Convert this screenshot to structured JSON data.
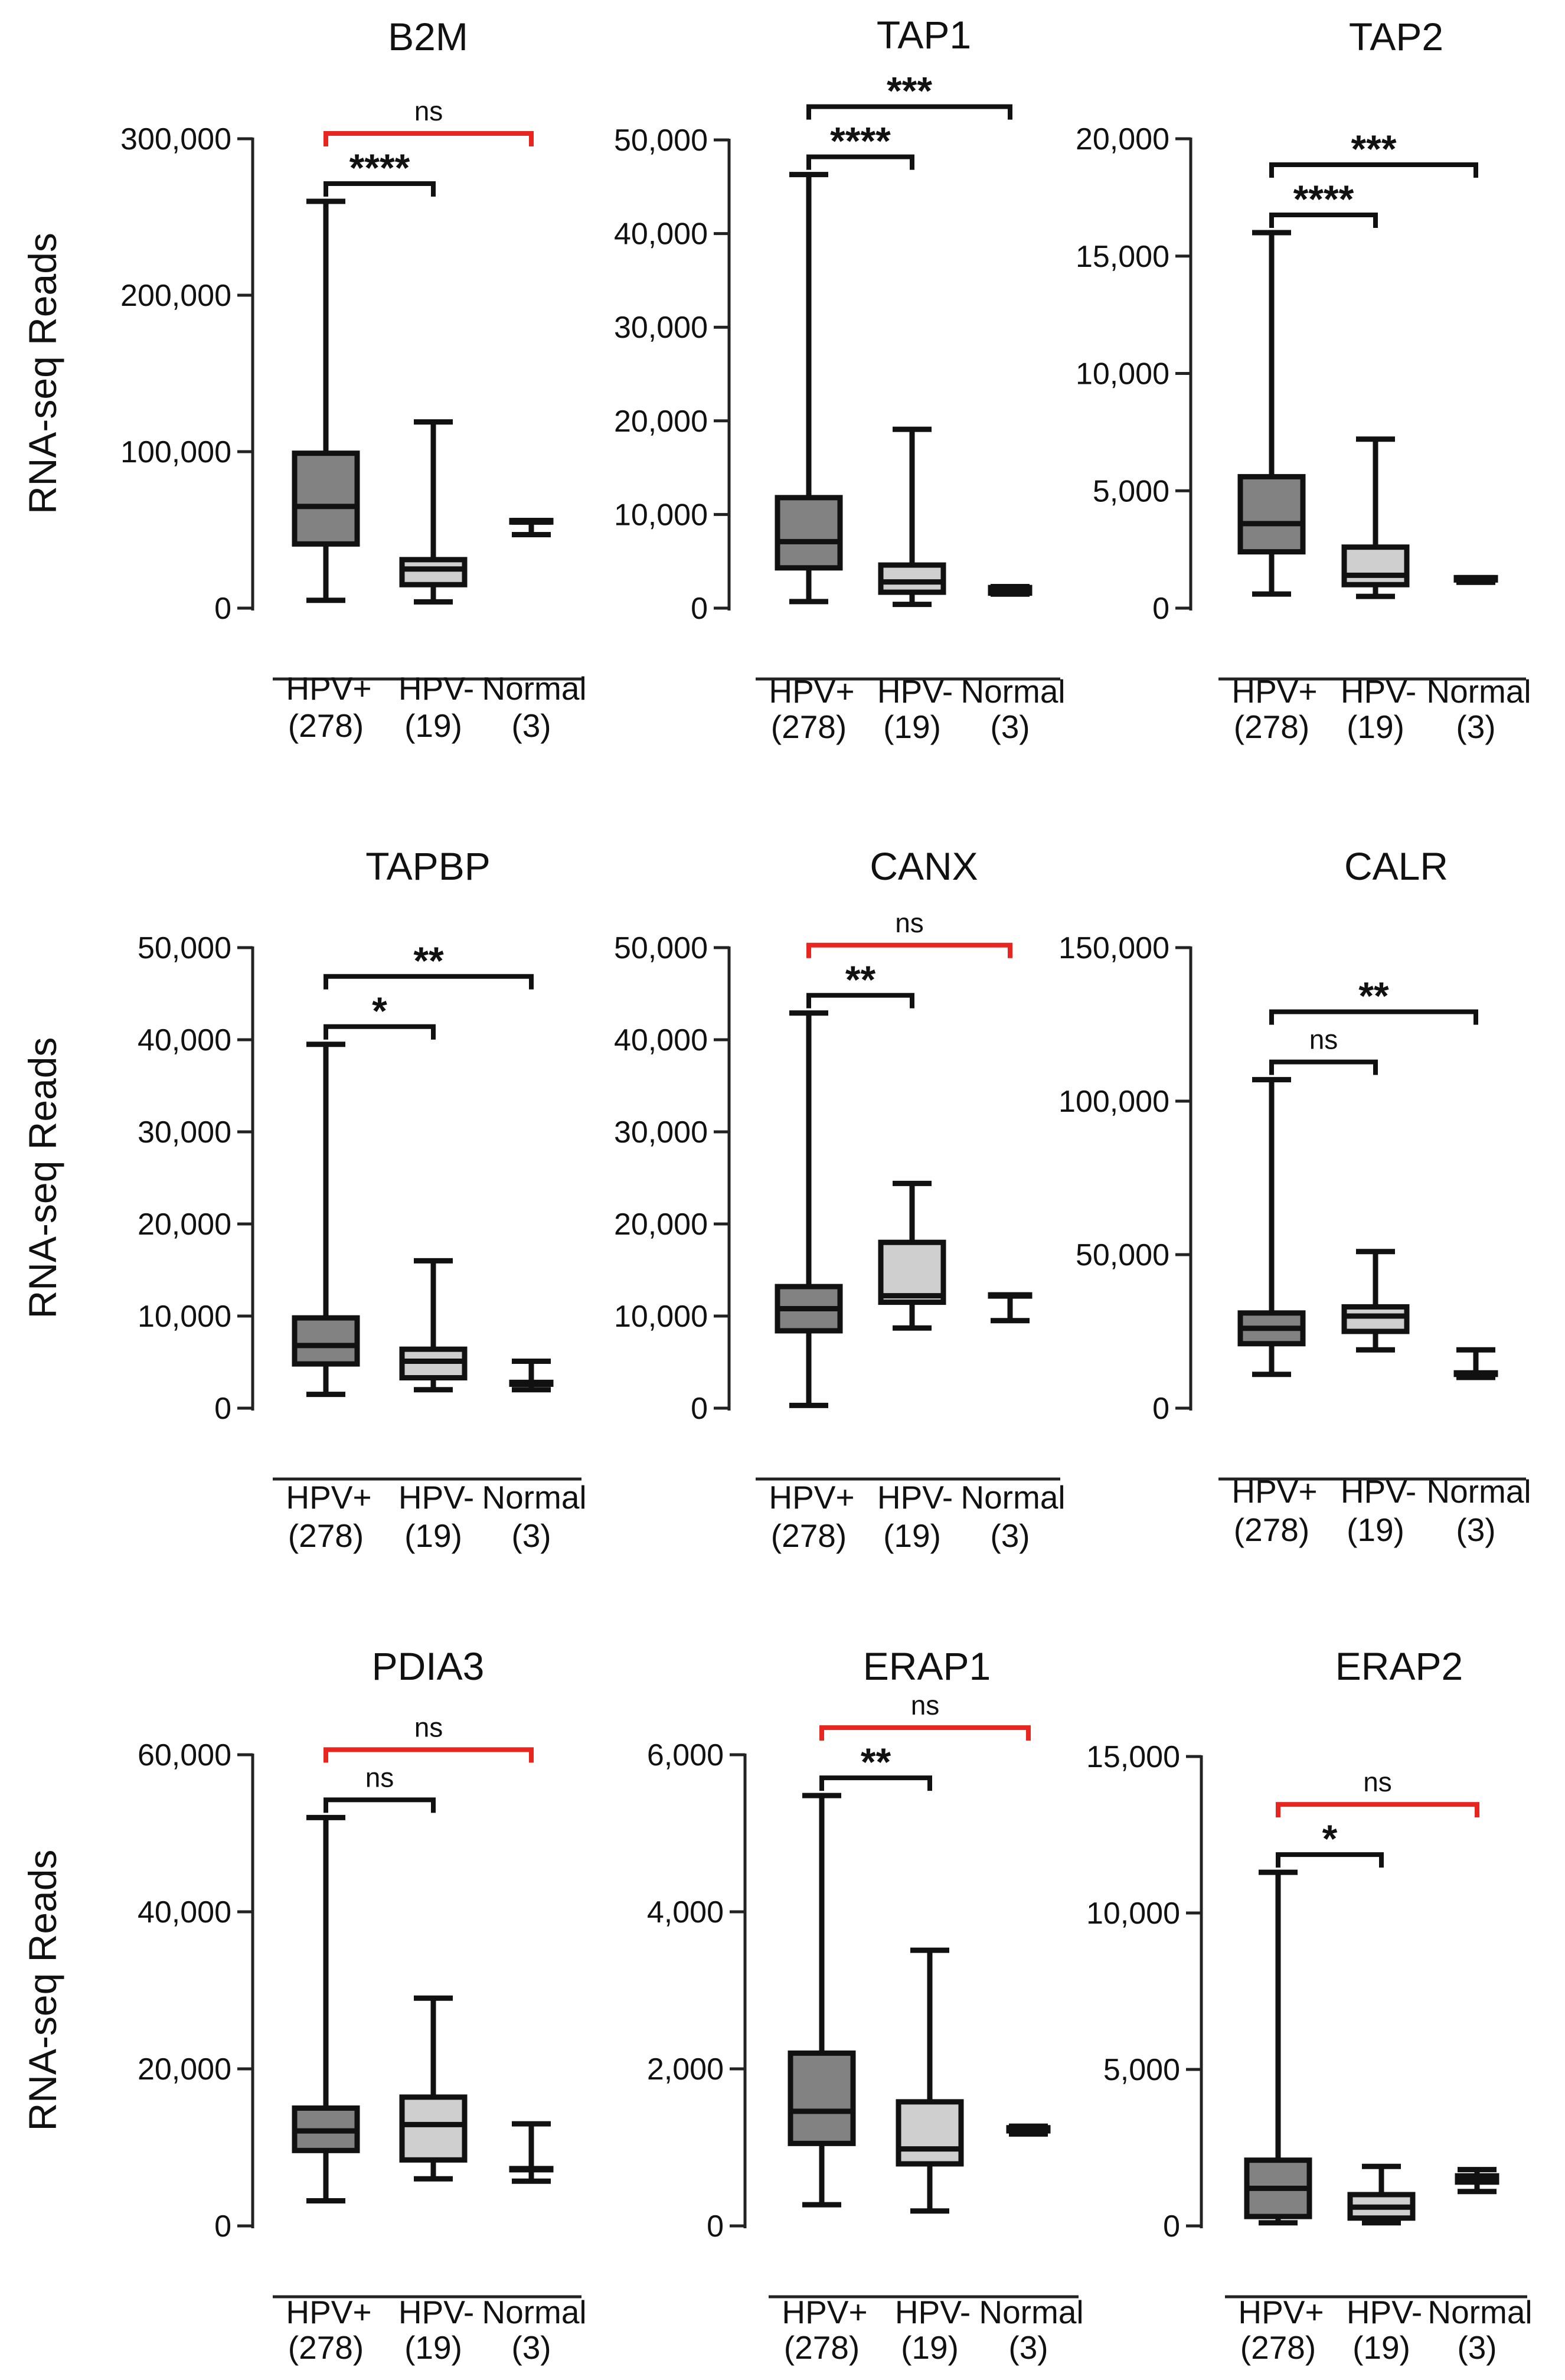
{
  "figure": {
    "ylabel": "RNA-seq Reads",
    "sig_colors": {
      "default": "#111111",
      "highlight": "#e8251f"
    }
  },
  "box_fill_colors": [
    "#828282",
    "#cfcfcf",
    "#ffffff"
  ],
  "chart_data": [
    {
      "type": "box",
      "title": "B2M",
      "ylabel": "RNA-seq Reads",
      "ylim": [
        0,
        300000
      ],
      "yticks": [
        0,
        100000,
        200000,
        300000
      ],
      "ytick_labels": [
        "0",
        "100,000",
        "200,000",
        "300,000"
      ],
      "categories": [
        "HPV+",
        "HPV-",
        "Normal"
      ],
      "n_labels": [
        "(278)",
        "(19)",
        "(3)"
      ],
      "boxes": [
        {
          "min": 5000,
          "q1": 41000,
          "median": 65000,
          "q3": 99000,
          "max": 260000
        },
        {
          "min": 4000,
          "q1": 15000,
          "median": 25000,
          "q3": 31000,
          "max": 119000
        },
        {
          "min": 47000,
          "q1": 55000,
          "median": 55000,
          "q3": 56000,
          "max": 56000
        }
      ],
      "significance": [
        {
          "from": 0,
          "to": 1,
          "label": "****",
          "highlight": false
        },
        {
          "from": 0,
          "to": 2,
          "label": "ns",
          "highlight": true
        }
      ]
    },
    {
      "type": "box",
      "title": "TAP1",
      "ylabel": "",
      "ylim": [
        0,
        50000
      ],
      "yticks": [
        0,
        10000,
        20000,
        30000,
        40000,
        50000
      ],
      "ytick_labels": [
        "0",
        "10,000",
        "20,000",
        "30,000",
        "40,000",
        "50,000"
      ],
      "categories": [
        "HPV+",
        "HPV-",
        "Normal"
      ],
      "n_labels": [
        "(278)",
        "(19)",
        "(3)"
      ],
      "boxes": [
        {
          "min": 700,
          "q1": 4300,
          "median": 7100,
          "q3": 11800,
          "max": 46300
        },
        {
          "min": 400,
          "q1": 1700,
          "median": 2800,
          "q3": 4600,
          "max": 19100
        },
        {
          "min": 1500,
          "q1": 1600,
          "median": 1900,
          "q3": 2200,
          "max": 2300
        }
      ],
      "significance": [
        {
          "from": 0,
          "to": 1,
          "label": "****",
          "highlight": false
        },
        {
          "from": 0,
          "to": 2,
          "label": "***",
          "highlight": false
        }
      ]
    },
    {
      "type": "box",
      "title": "TAP2",
      "ylabel": "",
      "ylim": [
        0,
        20000
      ],
      "yticks": [
        0,
        5000,
        10000,
        15000,
        20000
      ],
      "ytick_labels": [
        "0",
        "5,000",
        "10,000",
        "15,000",
        "20,000"
      ],
      "categories": [
        "HPV+",
        "HPV-",
        "Normal"
      ],
      "n_labels": [
        "(278)",
        "(19)",
        "(3)"
      ],
      "boxes": [
        {
          "min": 600,
          "q1": 2400,
          "median": 3600,
          "q3": 5600,
          "max": 16000
        },
        {
          "min": 500,
          "q1": 1000,
          "median": 1400,
          "q3": 2600,
          "max": 7200
        },
        {
          "min": 1100,
          "q1": 1200,
          "median": 1250,
          "q3": 1300,
          "max": 1300
        }
      ],
      "significance": [
        {
          "from": 0,
          "to": 1,
          "label": "****",
          "highlight": false
        },
        {
          "from": 0,
          "to": 2,
          "label": "***",
          "highlight": false
        }
      ]
    },
    {
      "type": "box",
      "title": "TAPBP",
      "ylabel": "RNA-seq Reads",
      "ylim": [
        0,
        50000
      ],
      "yticks": [
        0,
        10000,
        20000,
        30000,
        40000,
        50000
      ],
      "ytick_labels": [
        "0",
        "10,000",
        "20,000",
        "30,000",
        "40,000",
        "50,000"
      ],
      "categories": [
        "HPV+",
        "HPV-",
        "Normal"
      ],
      "n_labels": [
        "(278)",
        "(19)",
        "(3)"
      ],
      "boxes": [
        {
          "min": 1500,
          "q1": 4800,
          "median": 6800,
          "q3": 9800,
          "max": 39500
        },
        {
          "min": 2000,
          "q1": 3300,
          "median": 5100,
          "q3": 6400,
          "max": 16000
        },
        {
          "min": 2000,
          "q1": 2600,
          "median": 2600,
          "q3": 2800,
          "max": 5100
        }
      ],
      "significance": [
        {
          "from": 0,
          "to": 1,
          "label": "*",
          "highlight": false
        },
        {
          "from": 0,
          "to": 2,
          "label": "**",
          "highlight": false
        }
      ]
    },
    {
      "type": "box",
      "title": "CANX",
      "ylabel": "",
      "ylim": [
        0,
        50000
      ],
      "yticks": [
        0,
        10000,
        20000,
        30000,
        40000,
        50000
      ],
      "ytick_labels": [
        "0",
        "10,000",
        "20,000",
        "30,000",
        "40,000",
        "50,000"
      ],
      "categories": [
        "HPV+",
        "HPV-",
        "Normal"
      ],
      "n_labels": [
        "(278)",
        "(19)",
        "(3)"
      ],
      "boxes": [
        {
          "min": 300,
          "q1": 8400,
          "median": 10800,
          "q3": 13200,
          "max": 42900
        },
        {
          "min": 8700,
          "q1": 11500,
          "median": 12200,
          "q3": 18000,
          "max": 24400
        },
        {
          "min": 9500,
          "q1": 12200,
          "median": 12200,
          "q3": 12300,
          "max": 12300
        }
      ],
      "significance": [
        {
          "from": 0,
          "to": 1,
          "label": "**",
          "highlight": false
        },
        {
          "from": 0,
          "to": 2,
          "label": "ns",
          "highlight": true
        }
      ]
    },
    {
      "type": "box",
      "title": "CALR",
      "ylabel": "",
      "ylim": [
        0,
        150000
      ],
      "yticks": [
        0,
        50000,
        100000,
        150000
      ],
      "ytick_labels": [
        "0",
        "50,000",
        "100,000",
        "150,000"
      ],
      "categories": [
        "HPV+",
        "HPV-",
        "Normal"
      ],
      "n_labels": [
        "(278)",
        "(19)",
        "(3)"
      ],
      "boxes": [
        {
          "min": 11000,
          "q1": 21000,
          "median": 26000,
          "q3": 31000,
          "max": 107000
        },
        {
          "min": 19000,
          "q1": 25000,
          "median": 30000,
          "q3": 33000,
          "max": 51000
        },
        {
          "min": 10000,
          "q1": 11000,
          "median": 11000,
          "q3": 11500,
          "max": 19000
        }
      ],
      "significance": [
        {
          "from": 0,
          "to": 1,
          "label": "ns",
          "highlight": false
        },
        {
          "from": 0,
          "to": 2,
          "label": "**",
          "highlight": false
        }
      ]
    },
    {
      "type": "box",
      "title": "PDIA3",
      "ylabel": "RNA-seq Reads",
      "ylim": [
        0,
        60000
      ],
      "yticks": [
        0,
        20000,
        40000,
        60000
      ],
      "ytick_labels": [
        "0",
        "20,000",
        "40,000",
        "60,000"
      ],
      "categories": [
        "HPV+",
        "HPV-",
        "Normal"
      ],
      "n_labels": [
        "(278)",
        "(19)",
        "(3)"
      ],
      "boxes": [
        {
          "min": 3200,
          "q1": 9600,
          "median": 12100,
          "q3": 15000,
          "max": 52000
        },
        {
          "min": 6000,
          "q1": 8400,
          "median": 12900,
          "q3": 16400,
          "max": 29000
        },
        {
          "min": 5700,
          "q1": 7200,
          "median": 7200,
          "q3": 7300,
          "max": 13000
        }
      ],
      "significance": [
        {
          "from": 0,
          "to": 1,
          "label": "ns",
          "highlight": false
        },
        {
          "from": 0,
          "to": 2,
          "label": "ns",
          "highlight": true
        }
      ]
    },
    {
      "type": "box",
      "title": "ERAP1",
      "ylabel": "",
      "ylim": [
        0,
        6000
      ],
      "yticks": [
        0,
        2000,
        4000,
        6000
      ],
      "ytick_labels": [
        "0",
        "2,000",
        "4,000",
        "6,000"
      ],
      "categories": [
        "HPV+",
        "HPV-",
        "Normal"
      ],
      "n_labels": [
        "(278)",
        "(19)",
        "(3)"
      ],
      "boxes": [
        {
          "min": 270,
          "q1": 1050,
          "median": 1460,
          "q3": 2200,
          "max": 5480
        },
        {
          "min": 190,
          "q1": 790,
          "median": 980,
          "q3": 1580,
          "max": 3510
        },
        {
          "min": 1170,
          "q1": 1210,
          "median": 1230,
          "q3": 1250,
          "max": 1270
        }
      ],
      "significance": [
        {
          "from": 0,
          "to": 1,
          "label": "**",
          "highlight": false
        },
        {
          "from": 0,
          "to": 2,
          "label": "ns",
          "highlight": true
        }
      ]
    },
    {
      "type": "box",
      "title": "ERAP2",
      "ylabel": "",
      "ylim": [
        0,
        15000
      ],
      "yticks": [
        0,
        5000,
        10000,
        15000
      ],
      "ytick_labels": [
        "0",
        "5,000",
        "10,000",
        "15,000"
      ],
      "categories": [
        "HPV+",
        "HPV-",
        "Normal"
      ],
      "n_labels": [
        "(278)",
        "(19)",
        "(3)"
      ],
      "boxes": [
        {
          "min": 100,
          "q1": 300,
          "median": 1200,
          "q3": 2100,
          "max": 11300
        },
        {
          "min": 100,
          "q1": 250,
          "median": 600,
          "q3": 1000,
          "max": 1900
        },
        {
          "min": 1100,
          "q1": 1400,
          "median": 1500,
          "q3": 1600,
          "max": 1800
        }
      ],
      "significance": [
        {
          "from": 0,
          "to": 1,
          "label": "*",
          "highlight": false
        },
        {
          "from": 0,
          "to": 2,
          "label": "ns",
          "highlight": true
        }
      ]
    }
  ]
}
